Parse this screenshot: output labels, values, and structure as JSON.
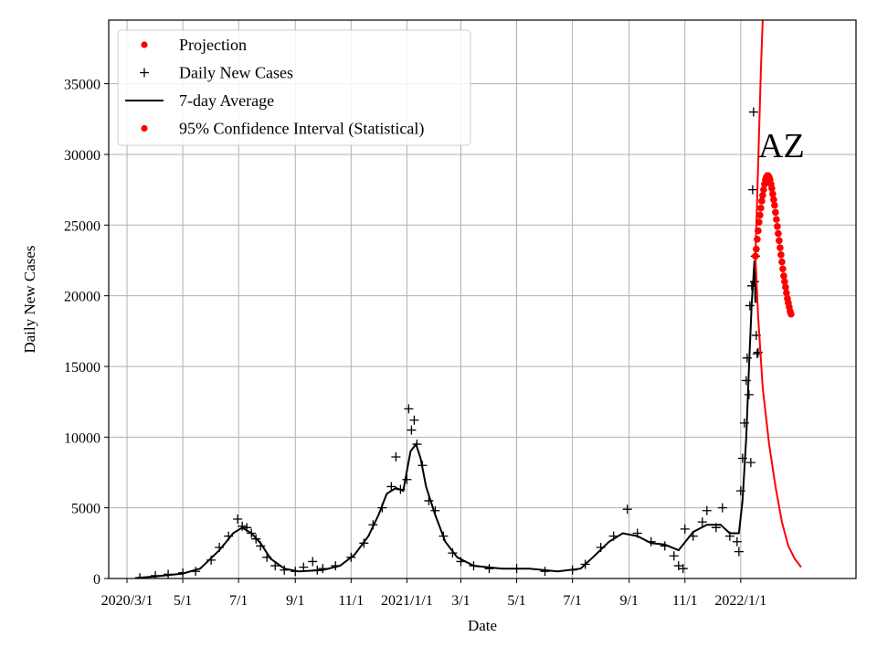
{
  "chart_data": {
    "type": "scatter",
    "xlabel": "Date",
    "ylabel": "Daily New Cases",
    "ylim": [
      0,
      39500
    ],
    "xlim": [
      "2020-02-10",
      "2022-05-07"
    ],
    "grid": true,
    "legend_position": "top-left",
    "annotation": "AZ",
    "x_tick_labels": [
      {
        "date": "2020-03-01",
        "label": "2020/3/1"
      },
      {
        "date": "2020-05-01",
        "label": "5/1"
      },
      {
        "date": "2020-07-01",
        "label": "7/1"
      },
      {
        "date": "2020-09-01",
        "label": "9/1"
      },
      {
        "date": "2020-11-01",
        "label": "11/1"
      },
      {
        "date": "2021-01-01",
        "label": "2021/1/1"
      },
      {
        "date": "2021-03-01",
        "label": "3/1"
      },
      {
        "date": "2021-05-01",
        "label": "5/1"
      },
      {
        "date": "2021-07-01",
        "label": "7/1"
      },
      {
        "date": "2021-09-01",
        "label": "9/1"
      },
      {
        "date": "2021-11-01",
        "label": "11/1"
      },
      {
        "date": "2022-01-01",
        "label": "2022/1/1"
      }
    ],
    "y_ticks": [
      0,
      5000,
      10000,
      15000,
      20000,
      25000,
      30000,
      35000
    ],
    "legend": [
      {
        "label": "Projection",
        "marker": "dot",
        "color": "#ff0000"
      },
      {
        "label": "Daily New Cases",
        "marker": "plus",
        "color": "#000000"
      },
      {
        "label": "7-day Average",
        "marker": "line",
        "color": "#000000"
      },
      {
        "label": "95% Confidence Interval (Statistical)",
        "marker": "dot",
        "color": "#ff0000"
      }
    ],
    "series": [
      {
        "name": "Daily New Cases",
        "style": "plus",
        "color": "#000000",
        "points": [
          [
            "2020-03-15",
            50
          ],
          [
            "2020-04-01",
            200
          ],
          [
            "2020-04-15",
            300
          ],
          [
            "2020-05-01",
            400
          ],
          [
            "2020-05-15",
            500
          ],
          [
            "2020-06-01",
            1300
          ],
          [
            "2020-06-10",
            2200
          ],
          [
            "2020-06-20",
            3000
          ],
          [
            "2020-06-30",
            4200
          ],
          [
            "2020-07-05",
            3700
          ],
          [
            "2020-07-10",
            3600
          ],
          [
            "2020-07-15",
            3200
          ],
          [
            "2020-07-20",
            2800
          ],
          [
            "2020-07-25",
            2300
          ],
          [
            "2020-08-01",
            1500
          ],
          [
            "2020-08-10",
            900
          ],
          [
            "2020-08-20",
            600
          ],
          [
            "2020-09-01",
            500
          ],
          [
            "2020-09-10",
            800
          ],
          [
            "2020-09-20",
            1200
          ],
          [
            "2020-09-25",
            600
          ],
          [
            "2020-10-01",
            700
          ],
          [
            "2020-10-15",
            900
          ],
          [
            "2020-11-01",
            1500
          ],
          [
            "2020-11-15",
            2500
          ],
          [
            "2020-11-25",
            3800
          ],
          [
            "2020-12-05",
            5000
          ],
          [
            "2020-12-15",
            6500
          ],
          [
            "2020-12-20",
            8600
          ],
          [
            "2020-12-25",
            6300
          ],
          [
            "2021-01-01",
            7000
          ],
          [
            "2021-01-03",
            12000
          ],
          [
            "2021-01-06",
            10500
          ],
          [
            "2021-01-09",
            11200
          ],
          [
            "2021-01-12",
            9500
          ],
          [
            "2021-01-18",
            8000
          ],
          [
            "2021-01-25",
            5500
          ],
          [
            "2021-02-01",
            4800
          ],
          [
            "2021-02-10",
            3000
          ],
          [
            "2021-02-20",
            1800
          ],
          [
            "2021-03-01",
            1200
          ],
          [
            "2021-03-15",
            900
          ],
          [
            "2021-04-01",
            700
          ],
          [
            "2021-05-01",
            700
          ],
          [
            "2021-06-01",
            500
          ],
          [
            "2021-07-01",
            600
          ],
          [
            "2021-07-15",
            1000
          ],
          [
            "2021-08-01",
            2200
          ],
          [
            "2021-08-15",
            3000
          ],
          [
            "2021-08-30",
            4900
          ],
          [
            "2021-09-10",
            3200
          ],
          [
            "2021-09-25",
            2600
          ],
          [
            "2021-10-10",
            2300
          ],
          [
            "2021-10-20",
            1600
          ],
          [
            "2021-10-25",
            900
          ],
          [
            "2021-10-30",
            700
          ],
          [
            "2021-11-01",
            3500
          ],
          [
            "2021-11-10",
            3000
          ],
          [
            "2021-11-20",
            4000
          ],
          [
            "2021-11-25",
            4800
          ],
          [
            "2021-12-05",
            3600
          ],
          [
            "2021-12-12",
            5000
          ],
          [
            "2021-12-20",
            3000
          ],
          [
            "2021-12-28",
            2600
          ],
          [
            "2021-12-30",
            1900
          ],
          [
            "2022-01-01",
            6200
          ],
          [
            "2022-01-03",
            8500
          ],
          [
            "2022-01-05",
            11000
          ],
          [
            "2022-01-07",
            14000
          ],
          [
            "2022-01-08",
            15600
          ],
          [
            "2022-01-10",
            13000
          ],
          [
            "2022-01-11",
            19300
          ],
          [
            "2022-01-12",
            8200
          ],
          [
            "2022-01-13",
            20700
          ],
          [
            "2022-01-14",
            27500
          ],
          [
            "2022-01-15",
            33000
          ],
          [
            "2022-01-16",
            21000
          ],
          [
            "2022-01-17",
            22800
          ],
          [
            "2022-01-18",
            17200
          ],
          [
            "2022-01-19",
            15900
          ],
          [
            "2022-01-20",
            16000
          ]
        ]
      },
      {
        "name": "7-day Average",
        "style": "line",
        "color": "#000000",
        "points": [
          [
            "2020-03-10",
            30
          ],
          [
            "2020-04-01",
            150
          ],
          [
            "2020-05-01",
            350
          ],
          [
            "2020-05-20",
            700
          ],
          [
            "2020-06-10",
            2000
          ],
          [
            "2020-06-25",
            3200
          ],
          [
            "2020-07-05",
            3600
          ],
          [
            "2020-07-15",
            3200
          ],
          [
            "2020-07-25",
            2500
          ],
          [
            "2020-08-05",
            1400
          ],
          [
            "2020-08-20",
            700
          ],
          [
            "2020-09-05",
            500
          ],
          [
            "2020-10-01",
            600
          ],
          [
            "2020-10-20",
            900
          ],
          [
            "2020-11-05",
            1700
          ],
          [
            "2020-11-20",
            3000
          ],
          [
            "2020-12-01",
            4500
          ],
          [
            "2020-12-10",
            6000
          ],
          [
            "2020-12-20",
            6400
          ],
          [
            "2020-12-28",
            6200
          ],
          [
            "2021-01-05",
            9000
          ],
          [
            "2021-01-11",
            9500
          ],
          [
            "2021-01-16",
            8500
          ],
          [
            "2021-01-22",
            6500
          ],
          [
            "2021-02-01",
            4500
          ],
          [
            "2021-02-12",
            2600
          ],
          [
            "2021-02-25",
            1500
          ],
          [
            "2021-03-15",
            900
          ],
          [
            "2021-04-15",
            700
          ],
          [
            "2021-05-15",
            700
          ],
          [
            "2021-06-15",
            500
          ],
          [
            "2021-07-10",
            700
          ],
          [
            "2021-07-25",
            1600
          ],
          [
            "2021-08-10",
            2600
          ],
          [
            "2021-08-25",
            3200
          ],
          [
            "2021-09-10",
            3000
          ],
          [
            "2021-09-25",
            2500
          ],
          [
            "2021-10-10",
            2400
          ],
          [
            "2021-10-25",
            2000
          ],
          [
            "2021-11-10",
            3300
          ],
          [
            "2021-11-25",
            3800
          ],
          [
            "2021-12-10",
            3800
          ],
          [
            "2021-12-20",
            3200
          ],
          [
            "2021-12-30",
            3200
          ],
          [
            "2022-01-03",
            5500
          ],
          [
            "2022-01-07",
            10000
          ],
          [
            "2022-01-10",
            15000
          ],
          [
            "2022-01-13",
            19500
          ],
          [
            "2022-01-16",
            22500
          ],
          [
            "2022-01-17",
            19500
          ]
        ]
      },
      {
        "name": "Projection",
        "style": "dots",
        "color": "#ff0000",
        "points": [
          [
            "2022-01-17",
            22800
          ],
          [
            "2022-01-18",
            23300
          ],
          [
            "2022-01-19",
            24000
          ],
          [
            "2022-01-20",
            24600
          ],
          [
            "2022-01-21",
            25200
          ],
          [
            "2022-01-22",
            25700
          ],
          [
            "2022-01-23",
            26200
          ],
          [
            "2022-01-24",
            26700
          ],
          [
            "2022-01-25",
            27100
          ],
          [
            "2022-01-26",
            27500
          ],
          [
            "2022-01-27",
            27900
          ],
          [
            "2022-01-28",
            28200
          ],
          [
            "2022-01-29",
            28400
          ],
          [
            "2022-01-30",
            28500
          ],
          [
            "2022-01-31",
            28500
          ],
          [
            "2022-02-01",
            28400
          ],
          [
            "2022-02-02",
            28200
          ],
          [
            "2022-02-03",
            27900
          ],
          [
            "2022-02-04",
            27600
          ],
          [
            "2022-02-05",
            27200
          ],
          [
            "2022-02-06",
            26800
          ],
          [
            "2022-02-07",
            26400
          ],
          [
            "2022-02-08",
            25900
          ],
          [
            "2022-02-09",
            25400
          ],
          [
            "2022-02-10",
            24900
          ],
          [
            "2022-02-11",
            24400
          ],
          [
            "2022-02-12",
            23900
          ],
          [
            "2022-02-13",
            23400
          ],
          [
            "2022-02-14",
            22900
          ],
          [
            "2022-02-15",
            22400
          ],
          [
            "2022-02-16",
            21900
          ],
          [
            "2022-02-17",
            21400
          ],
          [
            "2022-02-18",
            21000
          ],
          [
            "2022-02-19",
            20600
          ],
          [
            "2022-02-20",
            20200
          ],
          [
            "2022-02-21",
            19800
          ],
          [
            "2022-02-22",
            19500
          ],
          [
            "2022-02-23",
            19200
          ],
          [
            "2022-02-24",
            18900
          ],
          [
            "2022-02-25",
            18700
          ]
        ]
      },
      {
        "name": "95% Confidence Interval (Statistical)",
        "style": "line",
        "color": "#ff0000",
        "bands": [
          {
            "points": [
              [
                "2022-01-17",
                22800
              ],
              [
                "2022-01-19",
                27000
              ],
              [
                "2022-01-21",
                31500
              ],
              [
                "2022-01-23",
                36000
              ],
              [
                "2022-01-25",
                39500
              ]
            ]
          },
          {
            "points": [
              [
                "2022-01-17",
                22800
              ],
              [
                "2022-01-20",
                18500
              ],
              [
                "2022-01-25",
                13500
              ],
              [
                "2022-02-01",
                9500
              ],
              [
                "2022-02-08",
                6500
              ],
              [
                "2022-02-15",
                4000
              ],
              [
                "2022-02-22",
                2300
              ],
              [
                "2022-03-01",
                1400
              ],
              [
                "2022-03-08",
                800
              ]
            ]
          }
        ]
      }
    ]
  }
}
